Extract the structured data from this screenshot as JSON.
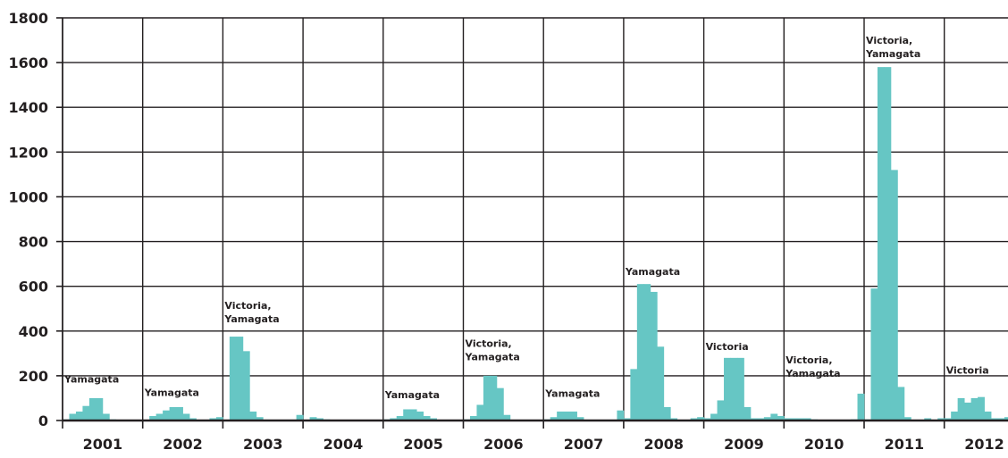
{
  "chart_data": {
    "type": "bar",
    "title": "",
    "xlabel": "",
    "ylabel": "",
    "ylim": [
      0,
      1800
    ],
    "yticks": [
      0,
      200,
      400,
      600,
      800,
      1000,
      1200,
      1400,
      1600,
      1800
    ],
    "years": [
      "2001",
      "2002",
      "2003",
      "2004",
      "2005",
      "2006",
      "2007",
      "2008",
      "2009",
      "2010",
      "2011",
      "2012"
    ],
    "grid": true,
    "bar_color": "#66c6c4",
    "grid_color": "#231f20",
    "series": [
      {
        "values": [
          5,
          30,
          40,
          65,
          100,
          100,
          30,
          5,
          0,
          0,
          0,
          0,
          0,
          20,
          30,
          45,
          60,
          60,
          30,
          10,
          0,
          0,
          10,
          15,
          0,
          375,
          375,
          310,
          40,
          15,
          0,
          0,
          0,
          0,
          0,
          25,
          0,
          15,
          10,
          5,
          0,
          0,
          0,
          0,
          0,
          0,
          0,
          0,
          5,
          10,
          20,
          50,
          50,
          40,
          20,
          10,
          0,
          0,
          0,
          0,
          5,
          20,
          70,
          200,
          200,
          145,
          25,
          0,
          0,
          0,
          0,
          0,
          5,
          15,
          40,
          40,
          40,
          15,
          0,
          0,
          0,
          0,
          0,
          45,
          10,
          230,
          610,
          610,
          575,
          330,
          60,
          10,
          0,
          0,
          10,
          15,
          10,
          30,
          90,
          280,
          280,
          280,
          60,
          10,
          10,
          15,
          30,
          20,
          10,
          10,
          10,
          10,
          5,
          0,
          0,
          0,
          0,
          0,
          5,
          120,
          5,
          590,
          1580,
          1580,
          1120,
          150,
          15,
          0,
          0,
          10,
          0,
          10,
          10,
          40,
          100,
          80,
          100,
          105,
          40,
          10,
          10,
          15,
          40,
          90
        ]
      }
    ],
    "annotations": [
      {
        "lines": [
          "Yamagata"
        ],
        "year_index": 0,
        "value": 170
      },
      {
        "lines": [
          "Yamagata"
        ],
        "year_index": 1,
        "value": 110
      },
      {
        "lines": [
          "Victoria,",
          "Yamagata"
        ],
        "year_index": 2,
        "value": 440
      },
      {
        "lines": [
          "Yamagata"
        ],
        "year_index": 4,
        "value": 100
      },
      {
        "lines": [
          "Victoria,",
          "Yamagata"
        ],
        "year_index": 5,
        "value": 270
      },
      {
        "lines": [
          "Yamagata"
        ],
        "year_index": 6,
        "value": 105
      },
      {
        "lines": [
          "Yamagata"
        ],
        "year_index": 7,
        "value": 650
      },
      {
        "lines": [
          "Victoria"
        ],
        "year_index": 8,
        "value": 315
      },
      {
        "lines": [
          "Victoria,",
          "Yamagata"
        ],
        "year_index": 9,
        "value": 195
      },
      {
        "lines": [
          "Victoria,",
          "Yamagata"
        ],
        "year_index": 10,
        "value": 1625
      },
      {
        "lines": [
          "Victoria"
        ],
        "year_index": 11,
        "value": 210
      }
    ]
  }
}
